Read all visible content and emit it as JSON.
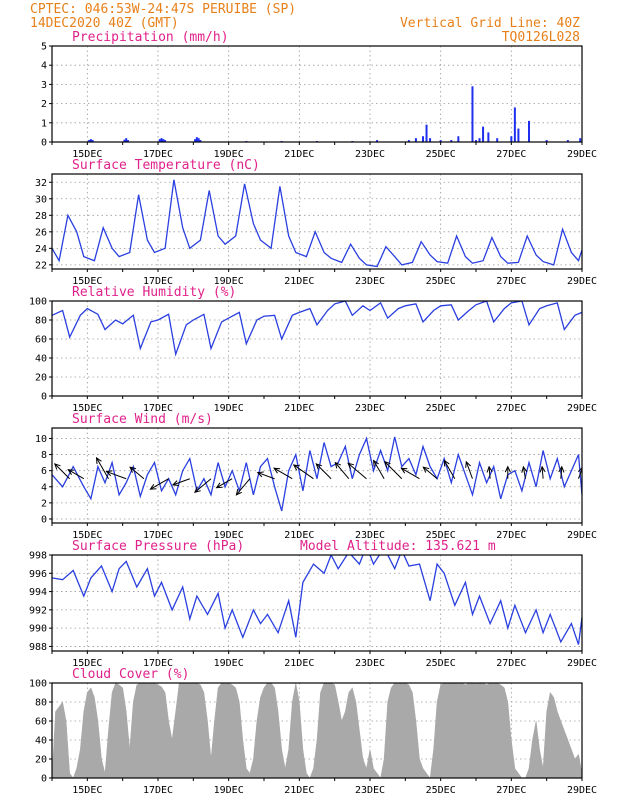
{
  "header": {
    "line1_left": "CPTEC:  046:53W-24:47S  PERUIBE (SP)",
    "line2_left": "14DEC2020 40Z (GMT)",
    "line1_right": "Vertical Grid Line: 40Z",
    "line2_right": "TQ0126L028"
  },
  "colors": {
    "header": "#e8801a",
    "panel_title": "#e0218a",
    "line": "#2a3fe0",
    "bars": "#1f2ff0",
    "cloud": "#a9a9a9",
    "grid": "#9a9a9a",
    "arrow": "#000000"
  },
  "x_axis": {
    "start_day": 14.0,
    "end_day": 29.0,
    "ticks": [
      "15DEC",
      "17DEC",
      "19DEC",
      "21DEC",
      "23DEC",
      "25DEC",
      "27DEC",
      "29DEC"
    ],
    "tick_days": [
      15,
      17,
      19,
      21,
      23,
      25,
      27,
      29
    ]
  },
  "chart_data": [
    {
      "id": "precip",
      "type": "bar",
      "title": "Precipitation (mm/h)",
      "ylim": [
        0,
        5
      ],
      "yticks": [
        0,
        1,
        2,
        3,
        4,
        5
      ],
      "grid": true,
      "x_unit": "day of December 2020 (GMT)",
      "x": [
        15.05,
        15.1,
        15.15,
        16.05,
        16.1,
        16.15,
        17.05,
        17.1,
        17.15,
        17.2,
        18.05,
        18.1,
        18.15,
        18.2,
        19.5,
        20.5,
        21.5,
        22.5,
        23.2,
        24.1,
        24.3,
        24.5,
        24.6,
        24.7,
        25.0,
        25.3,
        25.5,
        25.9,
        26.0,
        26.1,
        26.2,
        26.35,
        26.6,
        27.0,
        27.1,
        27.2,
        27.5,
        28.0,
        28.6,
        28.95
      ],
      "values": [
        0.1,
        0.15,
        0.1,
        0.12,
        0.2,
        0.1,
        0.15,
        0.2,
        0.15,
        0.1,
        0.15,
        0.25,
        0.2,
        0.1,
        0.05,
        0.05,
        0.05,
        0.05,
        0.1,
        0.1,
        0.2,
        0.3,
        0.9,
        0.2,
        0.1,
        0.1,
        0.3,
        2.9,
        0.1,
        0.2,
        0.8,
        0.5,
        0.2,
        0.3,
        1.8,
        0.7,
        1.1,
        0.1,
        0.1,
        0.2
      ]
    },
    {
      "id": "temp",
      "type": "line",
      "title": "Surface Temperature (nC)",
      "ylim": [
        21.5,
        33
      ],
      "yticks": [
        22,
        24,
        26,
        28,
        30,
        32
      ],
      "grid": true,
      "x_unit": "day of December 2020 (GMT)",
      "x": [
        14.0,
        14.2,
        14.45,
        14.7,
        14.9,
        15.2,
        15.45,
        15.7,
        15.9,
        16.2,
        16.45,
        16.7,
        16.9,
        17.2,
        17.45,
        17.7,
        17.9,
        18.2,
        18.45,
        18.7,
        18.9,
        19.2,
        19.45,
        19.7,
        19.9,
        20.2,
        20.45,
        20.7,
        20.9,
        21.2,
        21.45,
        21.7,
        21.9,
        22.2,
        22.45,
        22.7,
        22.9,
        23.2,
        23.45,
        23.7,
        23.9,
        24.2,
        24.45,
        24.7,
        24.9,
        25.2,
        25.45,
        25.7,
        25.9,
        26.2,
        26.45,
        26.7,
        26.9,
        27.2,
        27.45,
        27.7,
        27.9,
        28.2,
        28.45,
        28.7,
        28.9,
        29.0
      ],
      "values": [
        24.0,
        22.5,
        28.0,
        26.0,
        23.0,
        22.5,
        26.5,
        24.0,
        23.0,
        23.5,
        30.5,
        25.0,
        23.5,
        24.0,
        32.3,
        26.5,
        24.0,
        25.0,
        31.0,
        25.5,
        24.5,
        25.5,
        31.8,
        27.0,
        25.0,
        24.0,
        31.5,
        25.5,
        23.5,
        23.0,
        26.0,
        23.5,
        22.8,
        22.3,
        24.5,
        22.8,
        22.0,
        21.8,
        24.2,
        23.0,
        22.0,
        22.3,
        24.8,
        23.2,
        22.4,
        22.2,
        25.5,
        23.0,
        22.2,
        22.5,
        25.3,
        23.0,
        22.2,
        22.3,
        25.5,
        23.2,
        22.4,
        22.0,
        26.3,
        23.5,
        22.5,
        23.8
      ]
    },
    {
      "id": "rh",
      "type": "line",
      "title": "Relative Humidity (%)",
      "ylim": [
        0,
        100
      ],
      "yticks": [
        0,
        20,
        40,
        60,
        80,
        100
      ],
      "grid": true,
      "x_unit": "day of December 2020 (GMT)",
      "x": [
        14.0,
        14.3,
        14.5,
        14.8,
        15.0,
        15.3,
        15.5,
        15.8,
        16.0,
        16.3,
        16.5,
        16.8,
        17.0,
        17.3,
        17.5,
        17.8,
        18.0,
        18.3,
        18.5,
        18.8,
        19.0,
        19.3,
        19.5,
        19.8,
        20.0,
        20.3,
        20.5,
        20.8,
        21.0,
        21.3,
        21.5,
        21.8,
        22.0,
        22.3,
        22.5,
        22.8,
        23.0,
        23.3,
        23.5,
        23.8,
        24.0,
        24.3,
        24.5,
        24.8,
        25.0,
        25.3,
        25.5,
        25.8,
        26.0,
        26.3,
        26.5,
        26.8,
        27.0,
        27.3,
        27.5,
        27.8,
        28.0,
        28.3,
        28.5,
        28.8,
        29.0
      ],
      "values": [
        85.0,
        90.0,
        62.0,
        85.0,
        92.0,
        86.0,
        70.0,
        80.0,
        76.0,
        85.0,
        50.0,
        78.0,
        80.0,
        86.0,
        44.0,
        75.0,
        80.0,
        86.0,
        50.0,
        78.0,
        82.0,
        88.0,
        55.0,
        80.0,
        84.0,
        85.0,
        60.0,
        85.0,
        88.0,
        92.0,
        75.0,
        90.0,
        97.0,
        100.0,
        85.0,
        95.0,
        90.0,
        98.0,
        82.0,
        92.0,
        95.0,
        97.0,
        78.0,
        90.0,
        95.0,
        96.0,
        80.0,
        90.0,
        96.0,
        100.0,
        78.0,
        92.0,
        98.0,
        100.0,
        75.0,
        92.0,
        95.0,
        98.0,
        70.0,
        85.0,
        88.0
      ]
    },
    {
      "id": "wind",
      "type": "line",
      "title": "Surface Wind (m/s)",
      "ylim": [
        -0.5,
        11.3
      ],
      "yticks": [
        0,
        2,
        4,
        6,
        8,
        10
      ],
      "grid": true,
      "x_unit": "day of December 2020 (GMT)",
      "x": [
        14.0,
        14.3,
        14.6,
        14.9,
        15.1,
        15.3,
        15.5,
        15.7,
        15.9,
        16.1,
        16.3,
        16.5,
        16.7,
        16.9,
        17.1,
        17.3,
        17.5,
        17.7,
        17.9,
        18.1,
        18.3,
        18.5,
        18.7,
        18.9,
        19.1,
        19.3,
        19.5,
        19.7,
        19.9,
        20.1,
        20.3,
        20.5,
        20.7,
        20.9,
        21.1,
        21.3,
        21.5,
        21.7,
        21.9,
        22.1,
        22.3,
        22.5,
        22.7,
        22.9,
        23.1,
        23.3,
        23.5,
        23.7,
        23.9,
        24.1,
        24.3,
        24.5,
        24.7,
        24.9,
        25.1,
        25.3,
        25.5,
        25.7,
        25.9,
        26.1,
        26.3,
        26.5,
        26.7,
        26.9,
        27.1,
        27.3,
        27.5,
        27.7,
        27.9,
        28.1,
        28.3,
        28.5,
        28.7,
        28.9,
        29.0
      ],
      "values": [
        5.5,
        4.0,
        6.5,
        4.0,
        2.5,
        6.5,
        4.5,
        7.0,
        3.0,
        4.5,
        6.5,
        2.8,
        5.5,
        7.0,
        3.5,
        5.0,
        3.0,
        6.0,
        7.5,
        3.5,
        5.0,
        3.0,
        7.0,
        4.0,
        6.0,
        3.5,
        7.0,
        3.0,
        6.5,
        7.5,
        4.0,
        1.0,
        6.0,
        8.0,
        3.5,
        8.5,
        5.0,
        9.5,
        6.5,
        7.0,
        9.0,
        5.0,
        8.0,
        10.0,
        6.0,
        8.5,
        6.0,
        10.2,
        6.5,
        7.5,
        5.5,
        9.0,
        6.5,
        5.0,
        7.5,
        4.5,
        8.0,
        5.5,
        3.0,
        7.0,
        4.5,
        6.5,
        2.5,
        5.5,
        6.0,
        3.5,
        7.0,
        4.0,
        8.5,
        5.0,
        7.5,
        4.0,
        6.0,
        8.0,
        3.0
      ],
      "arrows_x": [
        14.5,
        14.9,
        15.6,
        16.1,
        16.6,
        17.3,
        17.9,
        18.5,
        19.1,
        19.6,
        20.3,
        20.8,
        21.4,
        21.9,
        22.4,
        22.9,
        23.4,
        23.9,
        24.4,
        24.9,
        25.4,
        25.9,
        26.4,
        26.9,
        27.4,
        27.9,
        28.4,
        28.9
      ],
      "arrows_dir_deg": [
        135,
        150,
        120,
        160,
        140,
        210,
        200,
        220,
        210,
        230,
        160,
        150,
        145,
        135,
        130,
        140,
        120,
        135,
        150,
        140,
        120,
        110,
        95,
        90,
        100,
        95,
        85,
        70
      ],
      "arrows_len": [
        0.7,
        0.6,
        0.8,
        0.7,
        0.6,
        0.7,
        0.6,
        0.7,
        0.6,
        0.7,
        0.6,
        0.7,
        0.8,
        0.7,
        0.7,
        0.8,
        0.7,
        0.8,
        0.7,
        0.6,
        0.7,
        0.6,
        0.4,
        0.4,
        0.4,
        0.4,
        0.4,
        0.4
      ]
    },
    {
      "id": "pressure",
      "type": "line",
      "title": "Surface Pressure (hPa)",
      "ylim": [
        987.5,
        998
      ],
      "yticks": [
        988,
        990,
        992,
        994,
        996,
        998
      ],
      "grid": true,
      "annotation": "Model Altitude: 135.621 m",
      "x_unit": "day of December 2020 (GMT)",
      "x": [
        14.0,
        14.3,
        14.6,
        14.9,
        15.1,
        15.4,
        15.7,
        15.9,
        16.1,
        16.4,
        16.7,
        16.9,
        17.1,
        17.4,
        17.7,
        17.9,
        18.1,
        18.4,
        18.7,
        18.9,
        19.1,
        19.4,
        19.7,
        19.9,
        20.1,
        20.4,
        20.7,
        20.9,
        21.1,
        21.4,
        21.7,
        21.9,
        22.1,
        22.4,
        22.7,
        22.9,
        23.1,
        23.4,
        23.7,
        23.9,
        24.1,
        24.4,
        24.7,
        24.9,
        25.1,
        25.4,
        25.7,
        25.9,
        26.1,
        26.4,
        26.7,
        26.9,
        27.1,
        27.4,
        27.7,
        27.9,
        28.1,
        28.4,
        28.7,
        28.9,
        29.0
      ],
      "values": [
        995.5,
        995.3,
        996.3,
        993.5,
        995.5,
        996.8,
        994.0,
        996.5,
        997.3,
        994.5,
        996.5,
        993.5,
        995.0,
        992.0,
        994.5,
        991.0,
        993.5,
        991.5,
        993.8,
        990.0,
        992.0,
        989.0,
        992.0,
        990.5,
        991.5,
        989.5,
        993.0,
        989.0,
        995.0,
        997.0,
        996.0,
        998.0,
        996.5,
        998.3,
        997.0,
        999.0,
        997.0,
        998.8,
        996.5,
        998.5,
        996.8,
        997.0,
        993.0,
        997.0,
        996.0,
        992.5,
        995.0,
        991.5,
        993.5,
        990.5,
        993.0,
        990.0,
        992.5,
        989.5,
        992.0,
        989.5,
        991.5,
        988.5,
        990.5,
        988.2,
        991.2
      ]
    },
    {
      "id": "cloud",
      "type": "area",
      "title": "Cloud Cover (%)",
      "ylim": [
        0,
        100
      ],
      "yticks": [
        0,
        20,
        40,
        60,
        80,
        100
      ],
      "grid": true,
      "x_unit": "day of December 2020 (GMT)",
      "x": [
        14.0,
        14.1,
        14.2,
        14.3,
        14.4,
        14.5,
        14.6,
        14.7,
        14.8,
        14.9,
        15.0,
        15.1,
        15.2,
        15.3,
        15.4,
        15.5,
        15.6,
        15.7,
        15.8,
        15.9,
        16.0,
        16.1,
        16.2,
        16.3,
        16.4,
        16.5,
        16.6,
        16.7,
        16.8,
        16.9,
        17.0,
        17.1,
        17.2,
        17.3,
        17.4,
        17.5,
        17.6,
        17.7,
        17.8,
        17.9,
        18.0,
        18.1,
        18.2,
        18.3,
        18.4,
        18.5,
        18.6,
        18.7,
        18.8,
        18.9,
        19.0,
        19.1,
        19.2,
        19.3,
        19.4,
        19.5,
        19.6,
        19.7,
        19.8,
        19.9,
        20.0,
        20.1,
        20.2,
        20.3,
        20.4,
        20.5,
        20.6,
        20.7,
        20.8,
        20.9,
        21.0,
        21.1,
        21.2,
        21.3,
        21.4,
        21.5,
        21.6,
        21.7,
        21.8,
        21.9,
        22.0,
        22.1,
        22.2,
        22.3,
        22.4,
        22.5,
        22.6,
        22.7,
        22.8,
        22.9,
        23.0,
        23.1,
        23.2,
        23.3,
        23.4,
        23.5,
        23.6,
        23.7,
        23.8,
        23.9,
        24.0,
        24.1,
        24.2,
        24.3,
        24.4,
        24.5,
        24.6,
        24.7,
        24.8,
        24.9,
        25.0,
        25.1,
        25.2,
        25.3,
        25.4,
        25.5,
        25.6,
        25.7,
        25.8,
        25.9,
        26.0,
        26.1,
        26.2,
        26.3,
        26.4,
        26.5,
        26.6,
        26.7,
        26.8,
        26.9,
        27.0,
        27.1,
        27.2,
        27.3,
        27.4,
        27.5,
        27.6,
        27.7,
        27.8,
        27.9,
        28.0,
        28.1,
        28.2,
        28.3,
        28.4,
        28.5,
        28.6,
        28.7,
        28.8,
        28.9,
        29.0
      ],
      "values": [
        0,
        70,
        75,
        80,
        60,
        5,
        0,
        10,
        30,
        70,
        90,
        95,
        85,
        60,
        20,
        5,
        50,
        90,
        100,
        98,
        95,
        70,
        30,
        80,
        98,
        100,
        100,
        99,
        100,
        100,
        98,
        96,
        90,
        60,
        40,
        70,
        100,
        100,
        99,
        100,
        100,
        100,
        98,
        90,
        60,
        20,
        60,
        95,
        100,
        99,
        100,
        98,
        95,
        80,
        40,
        10,
        5,
        20,
        60,
        85,
        95,
        100,
        100,
        95,
        70,
        30,
        10,
        30,
        80,
        100,
        80,
        30,
        5,
        0,
        10,
        40,
        90,
        100,
        99,
        100,
        98,
        80,
        60,
        70,
        90,
        95,
        80,
        50,
        20,
        10,
        30,
        10,
        5,
        0,
        20,
        80,
        95,
        100,
        99,
        100,
        100,
        98,
        90,
        60,
        20,
        10,
        5,
        0,
        30,
        80,
        98,
        100,
        99,
        100,
        100,
        99,
        100,
        98,
        100,
        100,
        99,
        100,
        100,
        98,
        100,
        99,
        100,
        98,
        95,
        80,
        40,
        10,
        5,
        0,
        0,
        10,
        40,
        60,
        30,
        10,
        70,
        90,
        85,
        70,
        60,
        50,
        40,
        30,
        20,
        25,
        5
      ]
    }
  ]
}
